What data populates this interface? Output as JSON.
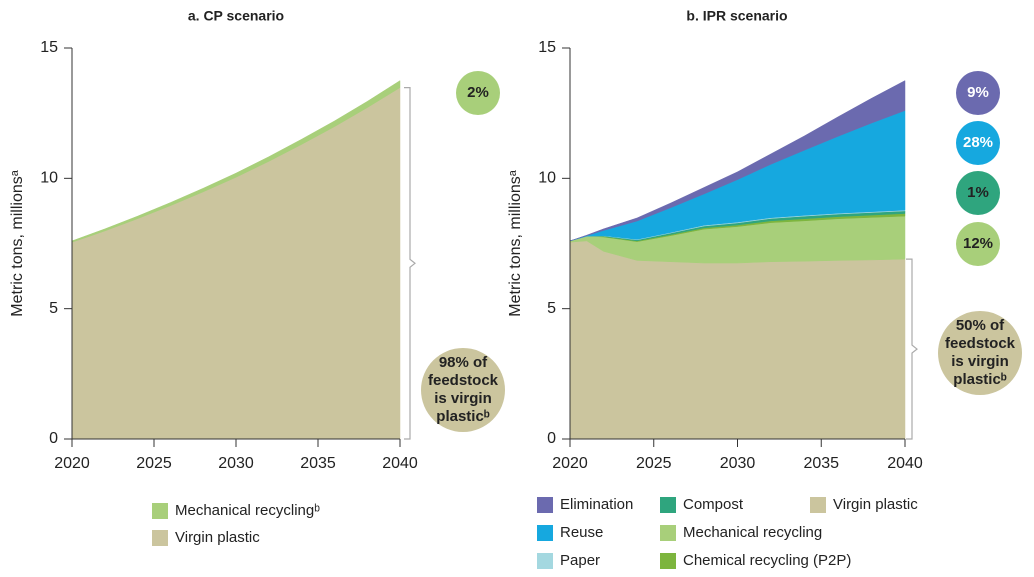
{
  "chart_data": [
    {
      "type": "stacked_area",
      "title": "a. CP scenario",
      "y_label": "Metric tons, millionsᵃ",
      "x": [
        2020,
        2021,
        2022,
        2024,
        2026,
        2028,
        2030,
        2032,
        2034,
        2036,
        2038,
        2040
      ],
      "xlim": [
        2020,
        2040
      ],
      "xticks": [
        2020,
        2025,
        2030,
        2035,
        2040
      ],
      "ylim": [
        0,
        15
      ],
      "yticks": [
        0,
        5,
        10,
        15
      ],
      "series": [
        {
          "name": "Virgin plastic",
          "color": "#cbc59e",
          "values": [
            7.55,
            7.76,
            7.98,
            8.45,
            8.95,
            9.48,
            10.04,
            10.65,
            11.3,
            11.98,
            12.71,
            13.48
          ]
        },
        {
          "name": "Mechanical recyclingᵇ",
          "color": "#a8cf7a",
          "values": [
            0.05,
            0.07,
            0.08,
            0.1,
            0.12,
            0.14,
            0.16,
            0.18,
            0.2,
            0.22,
            0.24,
            0.27
          ]
        }
      ],
      "annotations": [
        {
          "text": [
            "2%"
          ],
          "color": "#a8cf7a"
        },
        {
          "text": [
            "98% of",
            "feedstock",
            "is virgin",
            "plasticᵇ"
          ],
          "color": "#cbc59e"
        }
      ]
    },
    {
      "type": "stacked_area",
      "title": "b. IPR scenario",
      "y_label": "Metric tons, millionsᵃ",
      "x": [
        2020,
        2021,
        2022,
        2024,
        2026,
        2028,
        2030,
        2032,
        2034,
        2036,
        2038,
        2040
      ],
      "xlim": [
        2020,
        2040
      ],
      "xticks": [
        2020,
        2025,
        2030,
        2035,
        2040
      ],
      "ylim": [
        0,
        15
      ],
      "yticks": [
        0,
        5,
        10,
        15
      ],
      "series": [
        {
          "name": "Virgin plastic",
          "color": "#cbc59e",
          "values": [
            7.55,
            7.6,
            7.2,
            6.85,
            6.8,
            6.75,
            6.75,
            6.8,
            6.82,
            6.85,
            6.87,
            6.9
          ]
        },
        {
          "name": "Mechanical recycling",
          "color": "#a8cf7a",
          "values": [
            0.05,
            0.18,
            0.55,
            0.72,
            1.0,
            1.3,
            1.4,
            1.5,
            1.55,
            1.6,
            1.63,
            1.65
          ]
        },
        {
          "name": "Chemical recycling (P2P)",
          "color": "#7db53e",
          "values": [
            0,
            0,
            0.02,
            0.03,
            0.04,
            0.05,
            0.06,
            0.07,
            0.08,
            0.08,
            0.09,
            0.1
          ]
        },
        {
          "name": "Compost",
          "color": "#2fa57e",
          "values": [
            0,
            0,
            0.02,
            0.04,
            0.06,
            0.07,
            0.08,
            0.09,
            0.1,
            0.1,
            0.1,
            0.1
          ]
        },
        {
          "name": "Paper",
          "color": "#a4d8e0",
          "values": [
            0,
            0,
            0.01,
            0.02,
            0.02,
            0.03,
            0.03,
            0.03,
            0.03,
            0.03,
            0.03,
            0.03
          ]
        },
        {
          "name": "Reuse",
          "color": "#16a8df",
          "values": [
            0,
            0.02,
            0.2,
            0.7,
            0.95,
            1.2,
            1.63,
            2.05,
            2.5,
            2.95,
            3.4,
            3.82
          ]
        },
        {
          "name": "Elimination",
          "color": "#6b6aaf",
          "values": [
            0,
            0.02,
            0.06,
            0.12,
            0.18,
            0.25,
            0.3,
            0.4,
            0.55,
            0.75,
            0.95,
            1.15
          ]
        }
      ],
      "annotations": [
        {
          "text": [
            "9%"
          ],
          "color": "#6b6aaf"
        },
        {
          "text": [
            "28%"
          ],
          "color": "#16a8df"
        },
        {
          "text": [
            "1%"
          ],
          "color": "#2fa57e"
        },
        {
          "text": [
            "12%"
          ],
          "color": "#a8cf7a"
        },
        {
          "text": [
            "50% of",
            "feedstock",
            "is virgin",
            "plasticᵇ"
          ],
          "color": "#cbc59e"
        }
      ]
    }
  ]
}
